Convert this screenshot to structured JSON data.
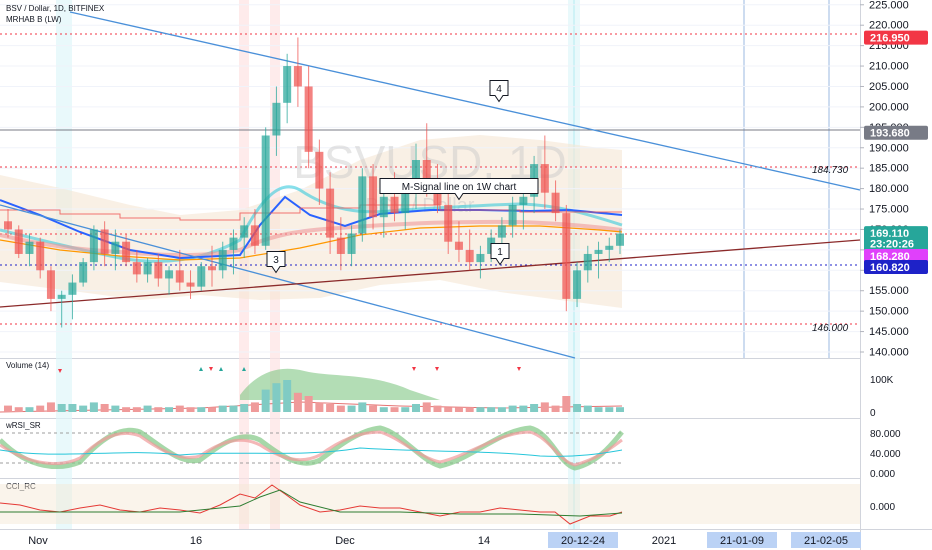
{
  "chart_data": {
    "type": "candlestick",
    "header": {
      "symbol": "BSV / Dollar, 1D, BITFINEX",
      "indicator": "MRHAB B (LW)"
    },
    "watermark": {
      "main": "BSVUSD, 1D",
      "sub": "BSV / Dollar"
    },
    "price_axis": {
      "ticks": [
        140,
        145,
        150,
        155,
        160,
        165,
        170,
        175,
        180,
        185,
        190,
        195,
        200,
        205,
        210,
        215,
        220,
        225
      ],
      "tick_labels": [
        "140.000",
        "145.000",
        "150.000",
        "155.000",
        "160.000",
        "165.000",
        "170.000",
        "175.000",
        "180.000",
        "185.000",
        "190.000",
        "195.000",
        "200.000",
        "205.000",
        "210.000",
        "215.000",
        "220.000",
        "225.000"
      ],
      "range": [
        137,
        226
      ]
    },
    "price_badges": [
      {
        "label": "216.950",
        "value": 216.95,
        "color": "#f23645"
      },
      {
        "label": "193.680",
        "value": 193.68,
        "color": "#787b86"
      },
      {
        "label": "169.110",
        "value": 169.11,
        "color": "#26a69a"
      },
      {
        "label": "23:20:26",
        "value": 166.5,
        "color": "#26a69a"
      },
      {
        "label": "168.280",
        "value": 163.5,
        "color": "#e040fb"
      },
      {
        "label": "160.820",
        "value": 160.82,
        "color": "#1e22c8"
      }
    ],
    "level_labels": [
      {
        "label": "184.730",
        "value": 184.73
      },
      {
        "label": "146.000",
        "value": 146.0
      }
    ],
    "candles_ohlc": [
      [
        172,
        175,
        168,
        170
      ],
      [
        170,
        171,
        163,
        164
      ],
      [
        164,
        169,
        161,
        167
      ],
      [
        167,
        168,
        158,
        160
      ],
      [
        160,
        161,
        150,
        153
      ],
      [
        153,
        155,
        146,
        154
      ],
      [
        154,
        159,
        148,
        157
      ],
      [
        157,
        163,
        156,
        162
      ],
      [
        162,
        171,
        160,
        170
      ],
      [
        170,
        172,
        161,
        164
      ],
      [
        164,
        170,
        160,
        167
      ],
      [
        167,
        169,
        161,
        162
      ],
      [
        162,
        165,
        157,
        159
      ],
      [
        159,
        163,
        157,
        162
      ],
      [
        162,
        164,
        156,
        158
      ],
      [
        158,
        161,
        154,
        160
      ],
      [
        160,
        165,
        155,
        157
      ],
      [
        157,
        160,
        153,
        156
      ],
      [
        156,
        162,
        155,
        161
      ],
      [
        161,
        166,
        156,
        160
      ],
      [
        160,
        167,
        158,
        165
      ],
      [
        165,
        170,
        159,
        168
      ],
      [
        168,
        173,
        163,
        171
      ],
      [
        171,
        175,
        164,
        166
      ],
      [
        166,
        195,
        165,
        193
      ],
      [
        193,
        205,
        188,
        201
      ],
      [
        201,
        213,
        196,
        210
      ],
      [
        210,
        217,
        200,
        205
      ],
      [
        205,
        210,
        185,
        189
      ],
      [
        189,
        192,
        176,
        180
      ],
      [
        180,
        184,
        164,
        168
      ],
      [
        168,
        173,
        160,
        164
      ],
      [
        164,
        171,
        161,
        169
      ],
      [
        169,
        185,
        167,
        183
      ],
      [
        183,
        186,
        170,
        173
      ],
      [
        173,
        180,
        168,
        178
      ],
      [
        178,
        184,
        172,
        174
      ],
      [
        174,
        180,
        170,
        179
      ],
      [
        179,
        191,
        175,
        187
      ],
      [
        187,
        196,
        178,
        181
      ],
      [
        181,
        186,
        174,
        176
      ],
      [
        176,
        179,
        164,
        167
      ],
      [
        167,
        172,
        162,
        165
      ],
      [
        165,
        170,
        160,
        162
      ],
      [
        162,
        166,
        158,
        164
      ],
      [
        164,
        170,
        162,
        168
      ],
      [
        168,
        173,
        165,
        171
      ],
      [
        171,
        178,
        168,
        176
      ],
      [
        176,
        182,
        170,
        178
      ],
      [
        178,
        188,
        174,
        186
      ],
      [
        186,
        193,
        175,
        179
      ],
      [
        179,
        182,
        172,
        174
      ],
      [
        174,
        176,
        150,
        153
      ],
      [
        153,
        162,
        151,
        160
      ],
      [
        160,
        166,
        157,
        164
      ],
      [
        164,
        167,
        158,
        165
      ],
      [
        165,
        168,
        162,
        166
      ],
      [
        166,
        170,
        164,
        169
      ]
    ],
    "annotations": [
      {
        "label": "1",
        "x": 500,
        "y": 251
      },
      {
        "label": "3",
        "x": 276,
        "y": 259
      },
      {
        "label": "4",
        "x": 499,
        "y": 88
      },
      {
        "label": "M-Signal line on 1W chart",
        "x": 459,
        "y": 186
      }
    ],
    "panes": [
      {
        "name": "Volume (14)",
        "ticks": [
          "100K",
          "0"
        ]
      },
      {
        "name": "wRSI_SR",
        "ticks": [
          "80.000",
          "40.000",
          "0.000"
        ]
      },
      {
        "name": "CCI_RC",
        "ticks": [
          "0.000"
        ]
      }
    ],
    "x_axis": {
      "labels": [
        {
          "text": "Nov",
          "x": 38,
          "highlight": false
        },
        {
          "text": "16",
          "x": 196,
          "highlight": false
        },
        {
          "text": "Dec",
          "x": 345,
          "highlight": false
        },
        {
          "text": "14",
          "x": 484,
          "highlight": false
        },
        {
          "text": "20-12-24",
          "x": 583,
          "highlight": true
        },
        {
          "text": "2021",
          "x": 664,
          "highlight": false
        },
        {
          "text": "21-01-09",
          "x": 742,
          "highlight": true
        },
        {
          "text": "21-02-05",
          "x": 826,
          "highlight": true
        }
      ]
    },
    "colors": {
      "up": "#26a69a",
      "down": "#ef5350",
      "trend": "#4a90d9",
      "support": "#8b2a2a"
    }
  }
}
